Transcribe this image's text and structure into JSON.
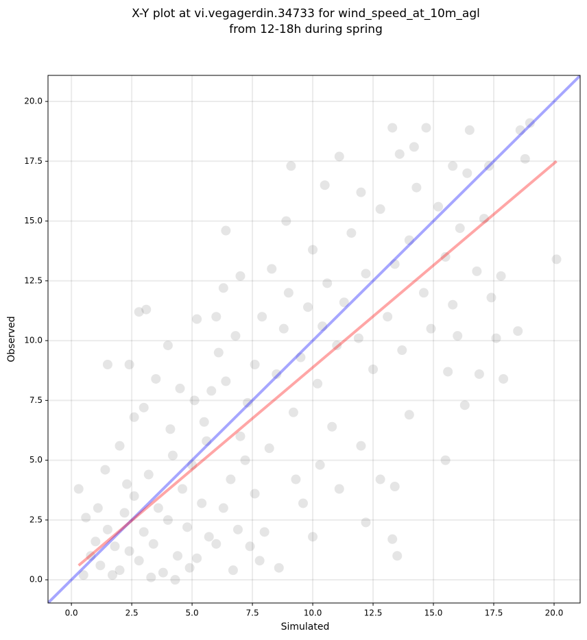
{
  "chart_data": {
    "type": "scatter",
    "title": [
      "X-Y plot at vi.vegagerdin.34733 for wind_speed_at_10m_agl",
      "from 12-18h during spring"
    ],
    "x_label": "Simulated",
    "y_label": "Observed",
    "xlim": [
      -0.97,
      21.08
    ],
    "ylim": [
      -0.97,
      21.09
    ],
    "xticks": [
      {
        "value": 0,
        "label": "0.0"
      },
      2.5,
      {
        "value": 5,
        "label": "5.0"
      },
      7.5,
      {
        "value": 10,
        "label": "10.0"
      },
      12.5,
      {
        "value": 15,
        "label": "15.0"
      },
      17.5,
      {
        "value": 20,
        "label": "20.0"
      }
    ],
    "yticks": [
      {
        "value": 0,
        "label": "0.0"
      },
      2.5,
      {
        "value": 5,
        "label": "5.0"
      },
      7.5,
      {
        "value": 10,
        "label": "10.0"
      },
      12.5,
      {
        "value": 15,
        "label": "15.0"
      },
      17.5,
      {
        "value": 20,
        "label": "20.0"
      }
    ],
    "grid": true,
    "color": "#333333",
    "x": [
      0.3,
      2.8,
      3.1,
      9.1,
      11.1,
      6.4,
      13.3,
      14.7,
      16.5,
      18.6,
      19.0,
      18.8,
      20.1,
      17.9,
      16.9,
      16.3,
      15.5,
      13.3,
      13.5,
      13.4,
      12.2,
      10.0,
      8.6,
      1.5,
      2.4,
      0.8,
      1.0,
      1.2,
      1.5,
      1.8,
      2.0,
      2.2,
      2.4,
      2.6,
      2.8,
      3.0,
      3.2,
      3.4,
      3.6,
      3.8,
      4.0,
      4.2,
      4.4,
      4.6,
      4.8,
      5.0,
      5.2,
      5.4,
      5.6,
      1.4,
      2.0,
      2.6,
      3.0,
      3.5,
      4.1,
      4.5,
      5.1,
      5.5,
      6.0,
      6.3,
      6.6,
      6.9,
      7.2,
      7.6,
      7.8,
      5.8,
      6.1,
      6.4,
      6.8,
      7.0,
      7.3,
      7.6,
      7.9,
      8.2,
      8.5,
      8.8,
      9.0,
      9.2,
      9.5,
      9.8,
      10.0,
      10.2,
      10.4,
      10.6,
      10.8,
      11.0,
      11.3,
      11.6,
      11.9,
      12.2,
      12.5,
      12.8,
      13.1,
      13.4,
      13.7,
      14.0,
      14.3,
      14.6,
      14.9,
      15.2,
      15.5,
      15.8,
      16.1,
      16.4,
      16.8,
      17.1,
      17.4,
      17.8,
      18.5,
      9.3,
      10.3,
      11.1,
      8.0,
      9.6,
      12.0,
      12.8,
      14.0,
      15.6,
      16.0,
      17.6,
      8.3,
      7.0,
      6.3,
      8.9,
      10.5,
      12.0,
      13.6,
      14.2,
      15.8,
      17.3,
      6.0,
      5.2,
      4.0,
      0.5,
      0.6,
      1.1,
      1.7,
      2.3,
      3.3,
      4.3,
      4.9,
      5.7,
      6.7,
      7.4
    ],
    "y": [
      3.8,
      11.2,
      11.3,
      17.3,
      17.7,
      14.6,
      18.9,
      18.9,
      18.8,
      18.8,
      19.1,
      17.6,
      13.4,
      8.4,
      8.6,
      7.3,
      5.0,
      1.7,
      1.0,
      3.9,
      2.4,
      1.8,
      0.5,
      9.0,
      9.0,
      1.0,
      1.6,
      0.6,
      2.1,
      1.4,
      0.4,
      2.8,
      1.2,
      3.5,
      0.8,
      2.0,
      4.4,
      1.5,
      3.0,
      0.3,
      2.5,
      5.2,
      1.0,
      3.8,
      2.2,
      4.8,
      0.9,
      3.2,
      5.8,
      4.6,
      5.6,
      6.8,
      7.2,
      8.4,
      6.3,
      8.0,
      7.5,
      6.6,
      1.5,
      3.0,
      4.2,
      2.1,
      5.0,
      3.6,
      0.8,
      7.9,
      9.5,
      8.3,
      10.2,
      6.0,
      7.4,
      9.0,
      11.0,
      5.5,
      8.6,
      10.5,
      12.0,
      7.0,
      9.3,
      11.4,
      13.8,
      8.2,
      10.6,
      12.4,
      6.4,
      9.8,
      11.6,
      14.5,
      10.1,
      12.8,
      8.8,
      15.5,
      11.0,
      13.2,
      9.6,
      14.2,
      16.4,
      12.0,
      10.5,
      15.6,
      13.5,
      11.5,
      14.7,
      17.0,
      12.9,
      15.1,
      11.8,
      12.7,
      10.4,
      4.2,
      4.8,
      3.8,
      2.0,
      3.2,
      5.6,
      4.2,
      6.9,
      8.7,
      10.2,
      10.1,
      13.0,
      12.7,
      12.2,
      15.0,
      16.5,
      16.2,
      17.8,
      18.1,
      17.3,
      17.3,
      11.0,
      10.9,
      9.8,
      0.2,
      2.6,
      3.0,
      0.2,
      4.0,
      0.1,
      0.0,
      0.5,
      1.8,
      0.4,
      1.4
    ],
    "lines": [
      {
        "color": "#0000ff",
        "x": [
          -0.97,
          21.08
        ],
        "y": [
          -0.97,
          21.08
        ]
      },
      {
        "color": "#ff0000",
        "x": [
          0.3,
          20.1
        ],
        "y": [
          0.6,
          17.5
        ]
      }
    ]
  }
}
